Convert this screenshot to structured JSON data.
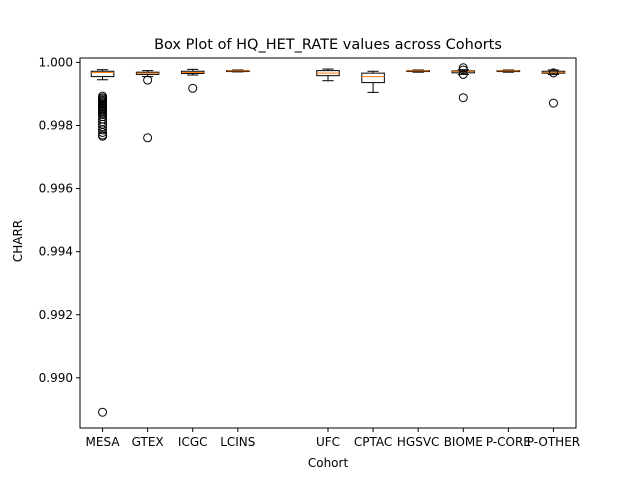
{
  "chart_data": {
    "type": "box",
    "title": "Box Plot of HQ_HET_RATE values across Cohorts",
    "xlabel": "Cohort",
    "ylabel": "CHARR",
    "ylim": [
      0.98841,
      1.00014
    ],
    "yticks": [
      0.99,
      0.992,
      0.994,
      0.996,
      0.998,
      1.0
    ],
    "ytick_labels": [
      "0.990",
      "0.992",
      "0.994",
      "0.996",
      "0.998",
      "1.000"
    ],
    "grid": false,
    "colors": {
      "box": "#000000",
      "median": "#ff7f0e",
      "flier": "#000000"
    },
    "categories": [
      {
        "name": "MESA",
        "pos": 1,
        "whisker_low": 0.99945,
        "q1": 0.99955,
        "median": 0.99968,
        "q3": 0.99972,
        "whisker_high": 0.99977,
        "fliers": [
          0.99893,
          0.99888,
          0.99884,
          0.9988,
          0.99876,
          0.99872,
          0.99868,
          0.99865,
          0.99861,
          0.99857,
          0.99853,
          0.99849,
          0.99845,
          0.9984,
          0.99835,
          0.99828,
          0.9982,
          0.99812,
          0.99804,
          0.99796,
          0.99786,
          0.99778,
          0.9977,
          0.99766,
          0.98891
        ]
      },
      {
        "name": "GTEX",
        "pos": 2,
        "whisker_low": 0.99955,
        "q1": 0.99962,
        "median": 0.99966,
        "q3": 0.99969,
        "whisker_high": 0.99974,
        "fliers": [
          0.99944,
          0.99761
        ]
      },
      {
        "name": "ICGC",
        "pos": 3,
        "whisker_low": 0.9996,
        "q1": 0.99965,
        "median": 0.99968,
        "q3": 0.99972,
        "whisker_high": 0.99978,
        "fliers": [
          0.99918
        ]
      },
      {
        "name": "LCINS",
        "pos": 4,
        "whisker_low": 0.9997,
        "q1": 0.99971,
        "median": 0.99973,
        "q3": 0.99974,
        "whisker_high": 0.99976,
        "fliers": []
      },
      {
        "name": "UFC",
        "pos": 6,
        "whisker_low": 0.99942,
        "q1": 0.99958,
        "median": 0.99966,
        "q3": 0.99974,
        "whisker_high": 0.99979,
        "fliers": []
      },
      {
        "name": "CPTAC",
        "pos": 7,
        "whisker_low": 0.99905,
        "q1": 0.99936,
        "median": 0.99955,
        "q3": 0.99966,
        "whisker_high": 0.99972,
        "fliers": []
      },
      {
        "name": "HGSVC",
        "pos": 8,
        "whisker_low": 0.99969,
        "q1": 0.99971,
        "median": 0.99973,
        "q3": 0.99974,
        "whisker_high": 0.99976,
        "fliers": []
      },
      {
        "name": "BIOME",
        "pos": 9,
        "whisker_low": 0.99962,
        "q1": 0.99967,
        "median": 0.99971,
        "q3": 0.99973,
        "whisker_high": 0.99977,
        "fliers": [
          0.99983,
          0.99976,
          0.99962,
          0.99888
        ]
      },
      {
        "name": "P-CORE",
        "pos": 10,
        "whisker_low": 0.99969,
        "q1": 0.99971,
        "median": 0.99973,
        "q3": 0.99974,
        "whisker_high": 0.99976,
        "fliers": []
      },
      {
        "name": "P-OTHER",
        "pos": 11,
        "whisker_low": 0.99962,
        "q1": 0.99966,
        "median": 0.99969,
        "q3": 0.99972,
        "whisker_high": 0.99976,
        "fliers": [
          0.99967,
          0.99871
        ]
      }
    ]
  }
}
